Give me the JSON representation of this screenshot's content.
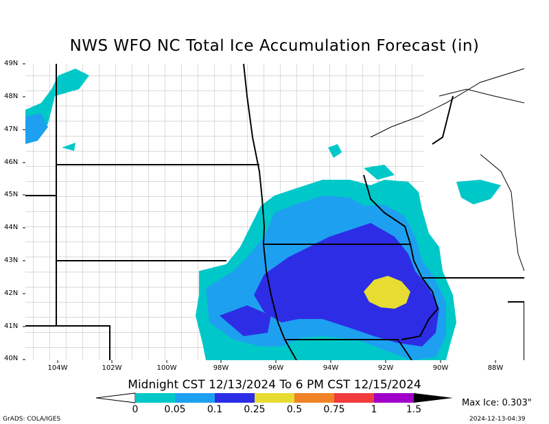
{
  "title": "NWS WFO NC Total Ice Accumulation Forecast (in)",
  "valid_period": "Midnight CST 12/13/2024 To 6 PM CST 12/15/2024",
  "max_ice": "Max Ice: 0.303\"",
  "credit": "GrADS: COLA/IGES",
  "timestamp": "2024-12-13-04:39",
  "lat_labels": [
    "49N",
    "48N",
    "47N",
    "46N",
    "45N",
    "44N",
    "43N",
    "42N",
    "41N",
    "40N"
  ],
  "lon_labels": [
    "104W",
    "102W",
    "100W",
    "98W",
    "96W",
    "94W",
    "92W",
    "90W",
    "88W"
  ],
  "legend": {
    "labels": [
      "0",
      "0.05",
      "0.1",
      "0.25",
      "0.5",
      "0.75",
      "1",
      "1.5"
    ],
    "colors": [
      "#00c8c8",
      "#1ea0f0",
      "#2d2de6",
      "#e6dc32",
      "#f08228",
      "#f03c3c",
      "#a000c8",
      "#000000"
    ]
  },
  "map_colors": {
    "trace": "#00c8c8",
    "light": "#1ea0f0",
    "moderate": "#2d2de6",
    "heavy": "#e6dc32",
    "county_lines": "#9a9a9a",
    "state_lines": "#000000"
  }
}
